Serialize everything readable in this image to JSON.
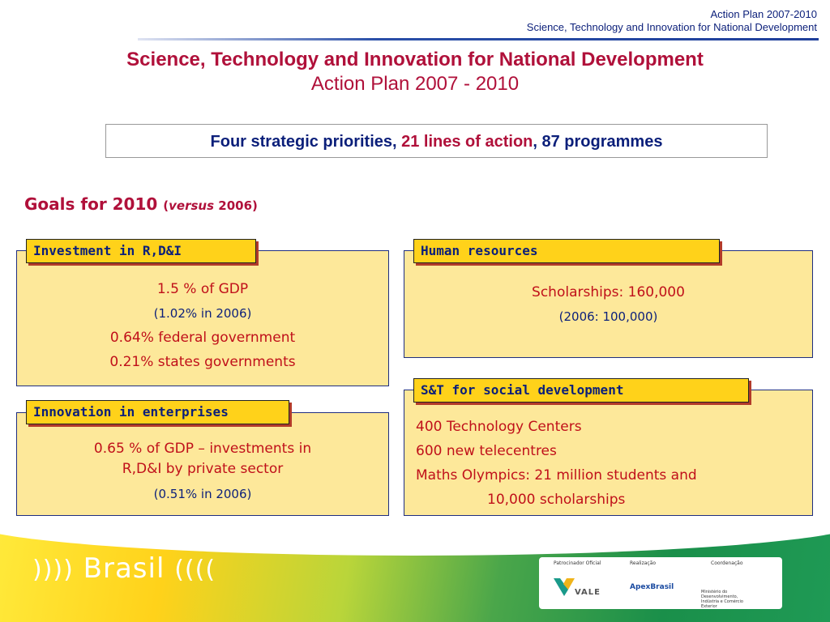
{
  "header": {
    "line1": "Action Plan 2007-2010",
    "line2": "Science, Technology and Innovation for National Development"
  },
  "title": "Science, Technology and Innovation for National Development",
  "subtitle": "Action Plan 2007 - 2010",
  "priorities": {
    "part1": "Four strategic priorities, ",
    "part2": "21 lines of  action",
    "part3": ", 87 programmes"
  },
  "goals": {
    "heading": "Goals for 2010 ",
    "paren_open": "(",
    "versus": "versus",
    "year": " 2006)"
  },
  "panels": {
    "investment": {
      "tab": "Investment in R,D&I",
      "lines": [
        "1.5 % of GDP",
        "(1.02% in 2006)",
        "0.64%  federal government",
        "0.21%  states governments"
      ]
    },
    "human": {
      "tab": "Human resources",
      "lines": [
        "Scholarships: 160,000",
        "(2006: 100,000)"
      ]
    },
    "innovation": {
      "tab": "Innovation in enterprises",
      "lines": [
        "0.65 % of GDP – investments in",
        "R,D&I by private sector",
        "(0.51% in 2006)"
      ]
    },
    "social": {
      "tab": "S&T for social development",
      "lines": [
        "400 Technology Centers",
        "600 new telecentres",
        "Maths Olympics: 21 million students and",
        "10,000 scholarships"
      ]
    }
  },
  "footer": {
    "brand": "Brasil",
    "sponsor_label": "Patrocinador Oficial",
    "realization_label": "Realização",
    "coordination_label": "Coordenação",
    "vale": "VALE",
    "apex": "ApexBrasil",
    "ministry": "Ministério do Desenvolvimento, Indústria e Comércio Exterior"
  },
  "colors": {
    "title_red": "#b0103a",
    "navy": "#0b1f7a",
    "panel_fill": "#fde89a",
    "tab_fill": "#ffd21a"
  }
}
